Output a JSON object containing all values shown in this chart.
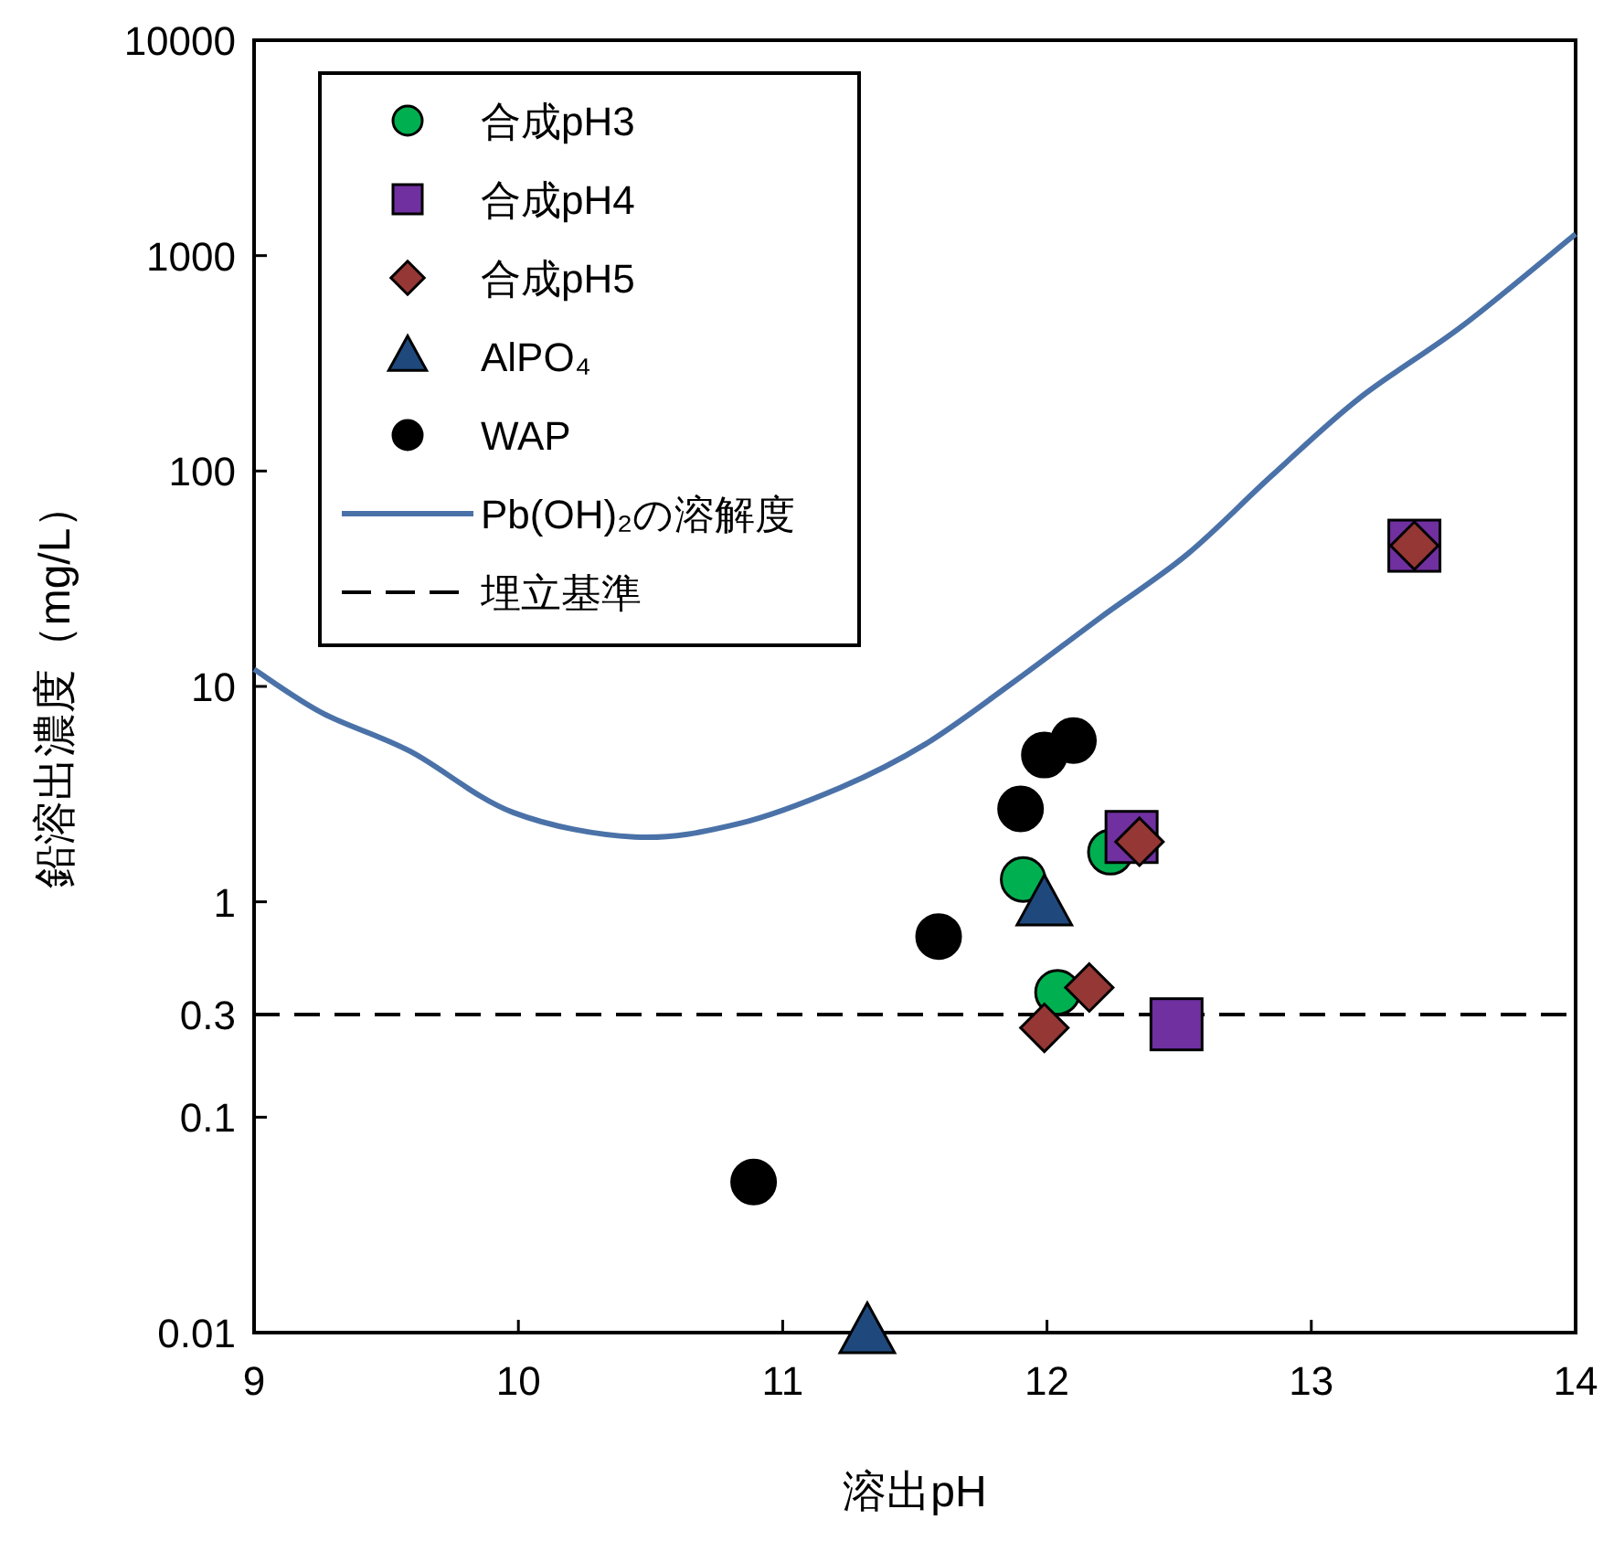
{
  "chart_data": {
    "type": "scatter",
    "xlabel": "溶出pH",
    "ylabel": "鉛溶出濃度（mg/L）",
    "log": "y",
    "xlim": [
      9,
      14
    ],
    "ylim": [
      0.01,
      10000
    ],
    "xticks": [
      9,
      10,
      11,
      12,
      13,
      14
    ],
    "yticks": [
      0.01,
      0.1,
      0.3,
      1,
      10,
      100,
      1000,
      10000
    ],
    "grid": false,
    "legend": "top left",
    "series": [
      {
        "name": "合成pH3",
        "type": "scatter",
        "marker": "circle",
        "color": "#00b050",
        "x": [
          11.91,
          12.04,
          12.24
        ],
        "values": [
          1.27,
          0.38,
          1.7
        ]
      },
      {
        "name": "合成pH4",
        "type": "scatter",
        "marker": "square",
        "color": "#7030a0",
        "x": [
          12.32,
          12.49,
          13.39
        ],
        "values": [
          2.0,
          0.27,
          45
        ]
      },
      {
        "name": "合成pH5",
        "type": "scatter",
        "marker": "diamond",
        "color": "#953735",
        "x": [
          11.99,
          12.16,
          12.35,
          13.39
        ],
        "values": [
          0.26,
          0.4,
          1.9,
          45
        ]
      },
      {
        "name": "AlPO₄",
        "type": "scatter",
        "marker": "triangle",
        "color": "#1f497d",
        "x": [
          11.99,
          11.32
        ],
        "values": [
          0.97,
          0.01
        ]
      },
      {
        "name": "WAP",
        "type": "scatter",
        "marker": "circle",
        "color": "#000000",
        "x": [
          10.89,
          11.59,
          11.9,
          11.99,
          12.1
        ],
        "values": [
          0.05,
          0.69,
          2.7,
          4.8,
          5.6
        ]
      },
      {
        "name": "Pb(OH)₂の溶解度",
        "type": "line",
        "marker": "none",
        "color": "#4a72a8",
        "x": [
          9,
          9.26,
          9.59,
          9.98,
          10.44,
          10.83,
          11.22,
          11.54,
          11.87,
          12.2,
          12.53,
          12.85,
          13.18,
          13.57,
          14
        ],
        "values": [
          12,
          7.5,
          5.0,
          2.6,
          2.0,
          2.3,
          3.4,
          5.4,
          10.4,
          20.8,
          41,
          95,
          217,
          470,
          1260
        ]
      }
    ],
    "ref_lines": [
      {
        "axis": "y",
        "value": 0.3,
        "label": "埋立基準",
        "color": "#000000",
        "line_style": "dashed"
      }
    ]
  }
}
